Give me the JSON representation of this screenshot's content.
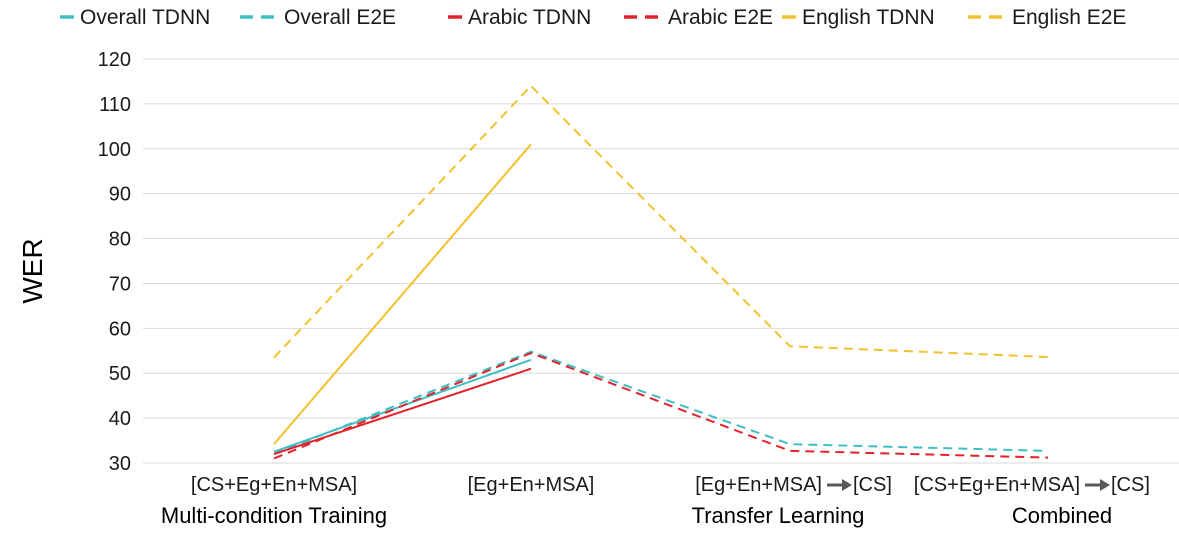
{
  "chart_data": {
    "type": "line",
    "ylabel": "WER",
    "ylim": [
      30,
      120
    ],
    "yticks": [
      30,
      40,
      50,
      60,
      70,
      80,
      90,
      100,
      110,
      120
    ],
    "grid": true,
    "legend_position": "top",
    "categories": [
      "[CS+Eg+En+MSA]",
      "[Eg+En+MSA]",
      "[Eg+En+MSA]→[CS]",
      "[CS+Eg+En+MSA]→[CS]"
    ],
    "category_labels": [
      {
        "text": "[CS+Eg+En+MSA]"
      },
      {
        "text": "[Eg+En+MSA]"
      },
      {
        "before": "[Eg+En+MSA]",
        "after": "[CS]"
      },
      {
        "before": "[CS+Eg+En+MSA]",
        "after": "[CS]"
      }
    ],
    "groups": [
      {
        "label": "Multi-condition Training",
        "categories": [
          0,
          1
        ]
      },
      {
        "label": "Transfer Learning",
        "categories": [
          2
        ]
      },
      {
        "label": "Combined",
        "categories": [
          3
        ]
      }
    ],
    "series": [
      {
        "name": "Overall TDNN",
        "color": "#3dbfc4",
        "style": "solid",
        "values": [
          32.5,
          53,
          null,
          null
        ]
      },
      {
        "name": "Overall E2E",
        "color": "#3dbfc4",
        "style": "dashed",
        "values": [
          32,
          54.8,
          34.2,
          32.7
        ]
      },
      {
        "name": "Arabic TDNN",
        "color": "#e3222b",
        "style": "solid",
        "values": [
          32,
          51,
          null,
          null
        ]
      },
      {
        "name": "Arabic E2E",
        "color": "#e3222b",
        "style": "dashed",
        "values": [
          31,
          54.5,
          32.7,
          31.2
        ]
      },
      {
        "name": "English TDNN",
        "color": "#f2c12e",
        "style": "solid",
        "values": [
          34.2,
          101,
          null,
          null
        ]
      },
      {
        "name": "English E2E",
        "color": "#f2c12e",
        "style": "dashed",
        "values": [
          53.5,
          114,
          56,
          53.6
        ]
      }
    ]
  }
}
